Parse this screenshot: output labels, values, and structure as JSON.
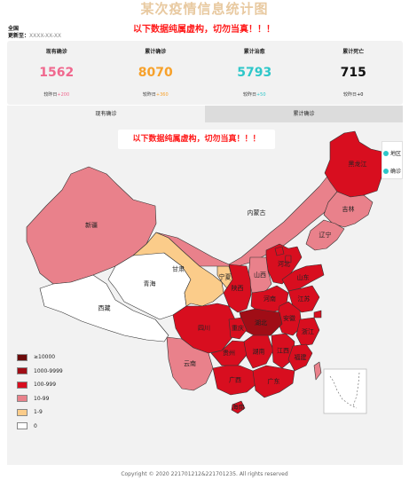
{
  "page": {
    "title": "某次疫情信息统计图",
    "notice": "以下数据纯属虚构，切勿当真！！！",
    "region": "全国",
    "update_label": "更新至：",
    "update_value": "XXXX-XX-XX"
  },
  "stats": [
    {
      "label": "现有确诊",
      "value": "1562",
      "change_label": "较昨日",
      "change_value": "+200",
      "color": "#f0688e"
    },
    {
      "label": "累计确诊",
      "value": "8070",
      "change_label": "较昨日",
      "change_value": "+360",
      "color": "#f7a12b"
    },
    {
      "label": "累计治愈",
      "value": "5793",
      "change_label": "较昨日",
      "change_value": "+50",
      "color": "#2ec7c9"
    },
    {
      "label": "累计死亡",
      "value": "715",
      "change_label": "较昨日",
      "change_value": "+0",
      "color": "#111111"
    }
  ],
  "tabs": [
    {
      "label": "现有确诊",
      "active": true
    },
    {
      "label": "累计确诊",
      "active": false
    }
  ],
  "legend": [
    {
      "label": "≥10000",
      "color": "#6b0a0a"
    },
    {
      "label": "1000-9999",
      "color": "#a00d16"
    },
    {
      "label": "100-999",
      "color": "#d80e1f"
    },
    {
      "label": "10-99",
      "color": "#e9818b"
    },
    {
      "label": "1-9",
      "color": "#fbcc8a"
    },
    {
      "label": "0",
      "color": "#ffffff"
    }
  ],
  "series_switch": [
    {
      "label": "地区",
      "color": "#2ec7c9"
    },
    {
      "label": "确诊",
      "color": "#2ec7c9"
    }
  ],
  "provinces": [
    {
      "name": "新疆",
      "level": "10-99",
      "fill": "#e9818b"
    },
    {
      "name": "西藏",
      "level": "0",
      "fill": "#ffffff"
    },
    {
      "name": "青海",
      "level": "0",
      "fill": "#ffffff"
    },
    {
      "name": "甘肃",
      "level": "1-9",
      "fill": "#fbcc8a"
    },
    {
      "name": "宁夏",
      "level": "1-9",
      "fill": "#fbcc8a"
    },
    {
      "name": "内蒙古",
      "level": "10-99",
      "fill": "#e9818b"
    },
    {
      "name": "黑龙江",
      "level": "100-999",
      "fill": "#d80e1f"
    },
    {
      "name": "吉林",
      "level": "10-99",
      "fill": "#e9818b"
    },
    {
      "name": "辽宁",
      "level": "10-99",
      "fill": "#e9818b"
    },
    {
      "name": "北京",
      "level": "100-999",
      "fill": "#d80e1f"
    },
    {
      "name": "天津",
      "level": "100-999",
      "fill": "#d80e1f"
    },
    {
      "name": "河北",
      "level": "100-999",
      "fill": "#d80e1f"
    },
    {
      "name": "山西",
      "level": "10-99",
      "fill": "#e9818b"
    },
    {
      "name": "陕西",
      "level": "100-999",
      "fill": "#d80e1f"
    },
    {
      "name": "山东",
      "level": "100-999",
      "fill": "#d80e1f"
    },
    {
      "name": "河南",
      "level": "100-999",
      "fill": "#d80e1f"
    },
    {
      "name": "江苏",
      "level": "100-999",
      "fill": "#d80e1f"
    },
    {
      "name": "安徽",
      "level": "100-999",
      "fill": "#d80e1f"
    },
    {
      "name": "上海",
      "level": "100-999",
      "fill": "#d80e1f"
    },
    {
      "name": "浙江",
      "level": "100-999",
      "fill": "#d80e1f"
    },
    {
      "name": "湖北",
      "level": "1000-9999",
      "fill": "#a00d16"
    },
    {
      "name": "四川",
      "level": "100-999",
      "fill": "#d80e1f"
    },
    {
      "name": "重庆",
      "level": "100-999",
      "fill": "#d80e1f"
    },
    {
      "name": "贵州",
      "level": "100-999",
      "fill": "#d80e1f"
    },
    {
      "name": "湖南",
      "level": "100-999",
      "fill": "#d80e1f"
    },
    {
      "name": "江西",
      "level": "100-999",
      "fill": "#d80e1f"
    },
    {
      "name": "福建",
      "level": "100-999",
      "fill": "#d80e1f"
    },
    {
      "name": "云南",
      "level": "10-99",
      "fill": "#e9818b"
    },
    {
      "name": "广西",
      "level": "100-999",
      "fill": "#d80e1f"
    },
    {
      "name": "广东",
      "level": "100-999",
      "fill": "#d80e1f"
    },
    {
      "name": "台湾",
      "level": "10-99",
      "fill": "#e9818b"
    },
    {
      "name": "海南",
      "level": "100-999",
      "fill": "#d80e1f"
    }
  ],
  "footer": "Copyright © 2020 221701212&221701235. All rights reserved"
}
